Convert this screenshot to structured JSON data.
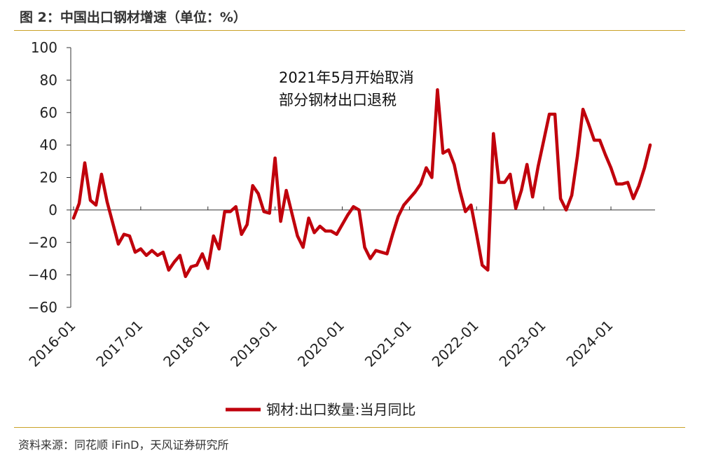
{
  "header": {
    "title": "图 2：中国出口钢材增速（单位：%）"
  },
  "footer": {
    "source": "资料来源：同花顺 iFinD，天风证券研究所"
  },
  "colors": {
    "series": "#c0000c",
    "rule": "#c9a227",
    "axis": "#333333"
  },
  "chart_data": {
    "type": "line",
    "title": "中国出口钢材增速（单位：%）",
    "xlabel": "",
    "ylabel": "",
    "ylim": [
      -60,
      100
    ],
    "yticks": [
      100,
      80,
      60,
      40,
      20,
      0,
      -20,
      -40,
      -60
    ],
    "xtick_labels": [
      "2016-01",
      "2017-01",
      "2018-01",
      "2019-01",
      "2020-01",
      "2021-01",
      "2022-01",
      "2023-01",
      "2024-01"
    ],
    "legend": {
      "position": "bottom-center",
      "label": "钢材:出口数量:当月同比"
    },
    "annotation": {
      "lines": [
        "2021年5月开始取消",
        "部分钢材出口退税"
      ]
    },
    "series": [
      {
        "name": "钢材:出口数量:当月同比",
        "start": "2016-01",
        "values": [
          -5,
          4,
          29,
          6,
          3,
          22,
          5,
          -8,
          -21,
          -15,
          -16,
          -26,
          -24,
          -28,
          -25,
          -28,
          -26,
          -37,
          -32,
          -28,
          -41,
          -35,
          -34,
          -27,
          -36,
          -16,
          -24,
          -1,
          -1,
          2,
          -15,
          -9,
          15,
          10,
          -1,
          -2,
          32,
          -7,
          12,
          -2,
          -16,
          -23,
          -5,
          -14,
          -10,
          -13,
          -13,
          -15,
          -9,
          -3,
          2,
          0,
          -23,
          -30,
          -25,
          -26,
          -27,
          -15,
          -4,
          3,
          7,
          11,
          16,
          26,
          20,
          74,
          35,
          37,
          28,
          12,
          -1,
          3,
          -15,
          -34,
          -37,
          47,
          17,
          17,
          22,
          1,
          12,
          28,
          8,
          27,
          43,
          59,
          59,
          7,
          0,
          9,
          33,
          62,
          53,
          43,
          43,
          34,
          26,
          16,
          16,
          17,
          7,
          15,
          26,
          40
        ]
      }
    ]
  }
}
